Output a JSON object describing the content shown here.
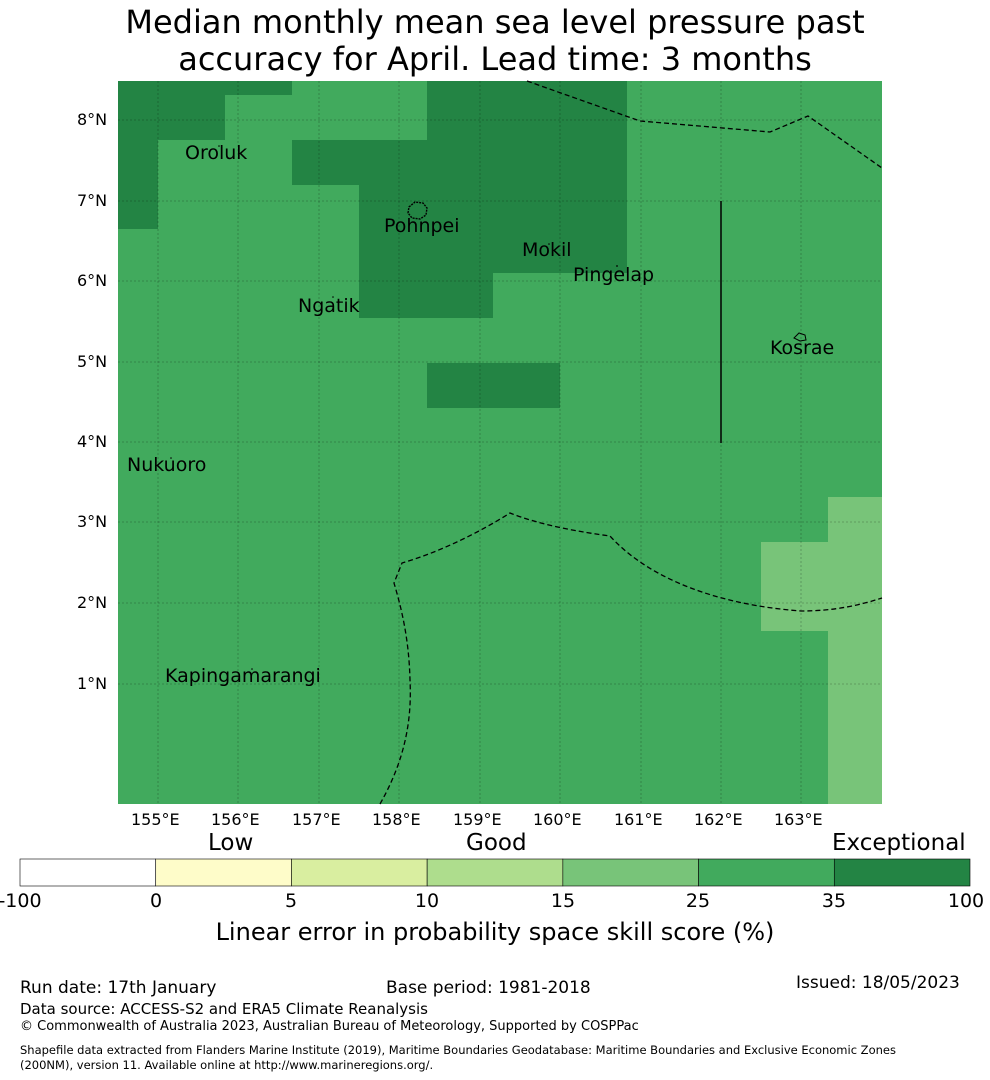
{
  "title_line1": "Median monthly mean sea level pressure past",
  "title_line2": "accuracy for April. Lead time: 3 months",
  "lon_ticks": [
    "155°E",
    "156°E",
    "157°E",
    "158°E",
    "159°E",
    "160°E",
    "161°E",
    "162°E",
    "163°E"
  ],
  "lat_ticks": [
    "8°N",
    "7°N",
    "6°N",
    "5°N",
    "4°N",
    "3°N",
    "2°N",
    "1°N"
  ],
  "places": {
    "oroluk": "Oroluk",
    "pohnpei": "Pohnpei",
    "mokil": "Mokil",
    "pingelap": "Pingelap",
    "ngatik": "Ngatik",
    "kosrae": "Kosrae",
    "nukuoro": "Nukuoro",
    "kapingamarangi": "Kapingamarangi"
  },
  "colorbar": {
    "heads": {
      "low": "Low",
      "good": "Good",
      "exceptional": "Exceptional"
    },
    "labels": [
      "-100",
      "0",
      "5",
      "10",
      "15",
      "25",
      "35",
      "100"
    ],
    "colors": [
      "#ffffff",
      "#fefcc9",
      "#d9eea0",
      "#aedd8d",
      "#78c479",
      "#41aa5d",
      "#238444"
    ],
    "title": "Linear error in probability space skill score (%)"
  },
  "colors": {
    "exceptional": "#238444",
    "good_high": "#41aa5d",
    "good_mid": "#78c479"
  },
  "footer": {
    "run_date": "Run date: 17th January",
    "base_period": "Base period: 1981-2018",
    "issued": "Issued: 18/05/2023",
    "data_source": "Data source: ACCESS-S2 and ERA5 Climate Reanalysis",
    "copyright": "© Commonwealth of Australia 2023, Australian Bureau of Meteorology, Supported by COSPPac",
    "shapefile_line1": "Shapefile data extracted from Flanders Marine Institute (2019), Maritime Boundaries Geodatabase: Maritime Boundaries and Exclusive Economic Zones",
    "shapefile_line2": "(200NM), version 11. Available online at http://www.marineregions.org/."
  }
}
